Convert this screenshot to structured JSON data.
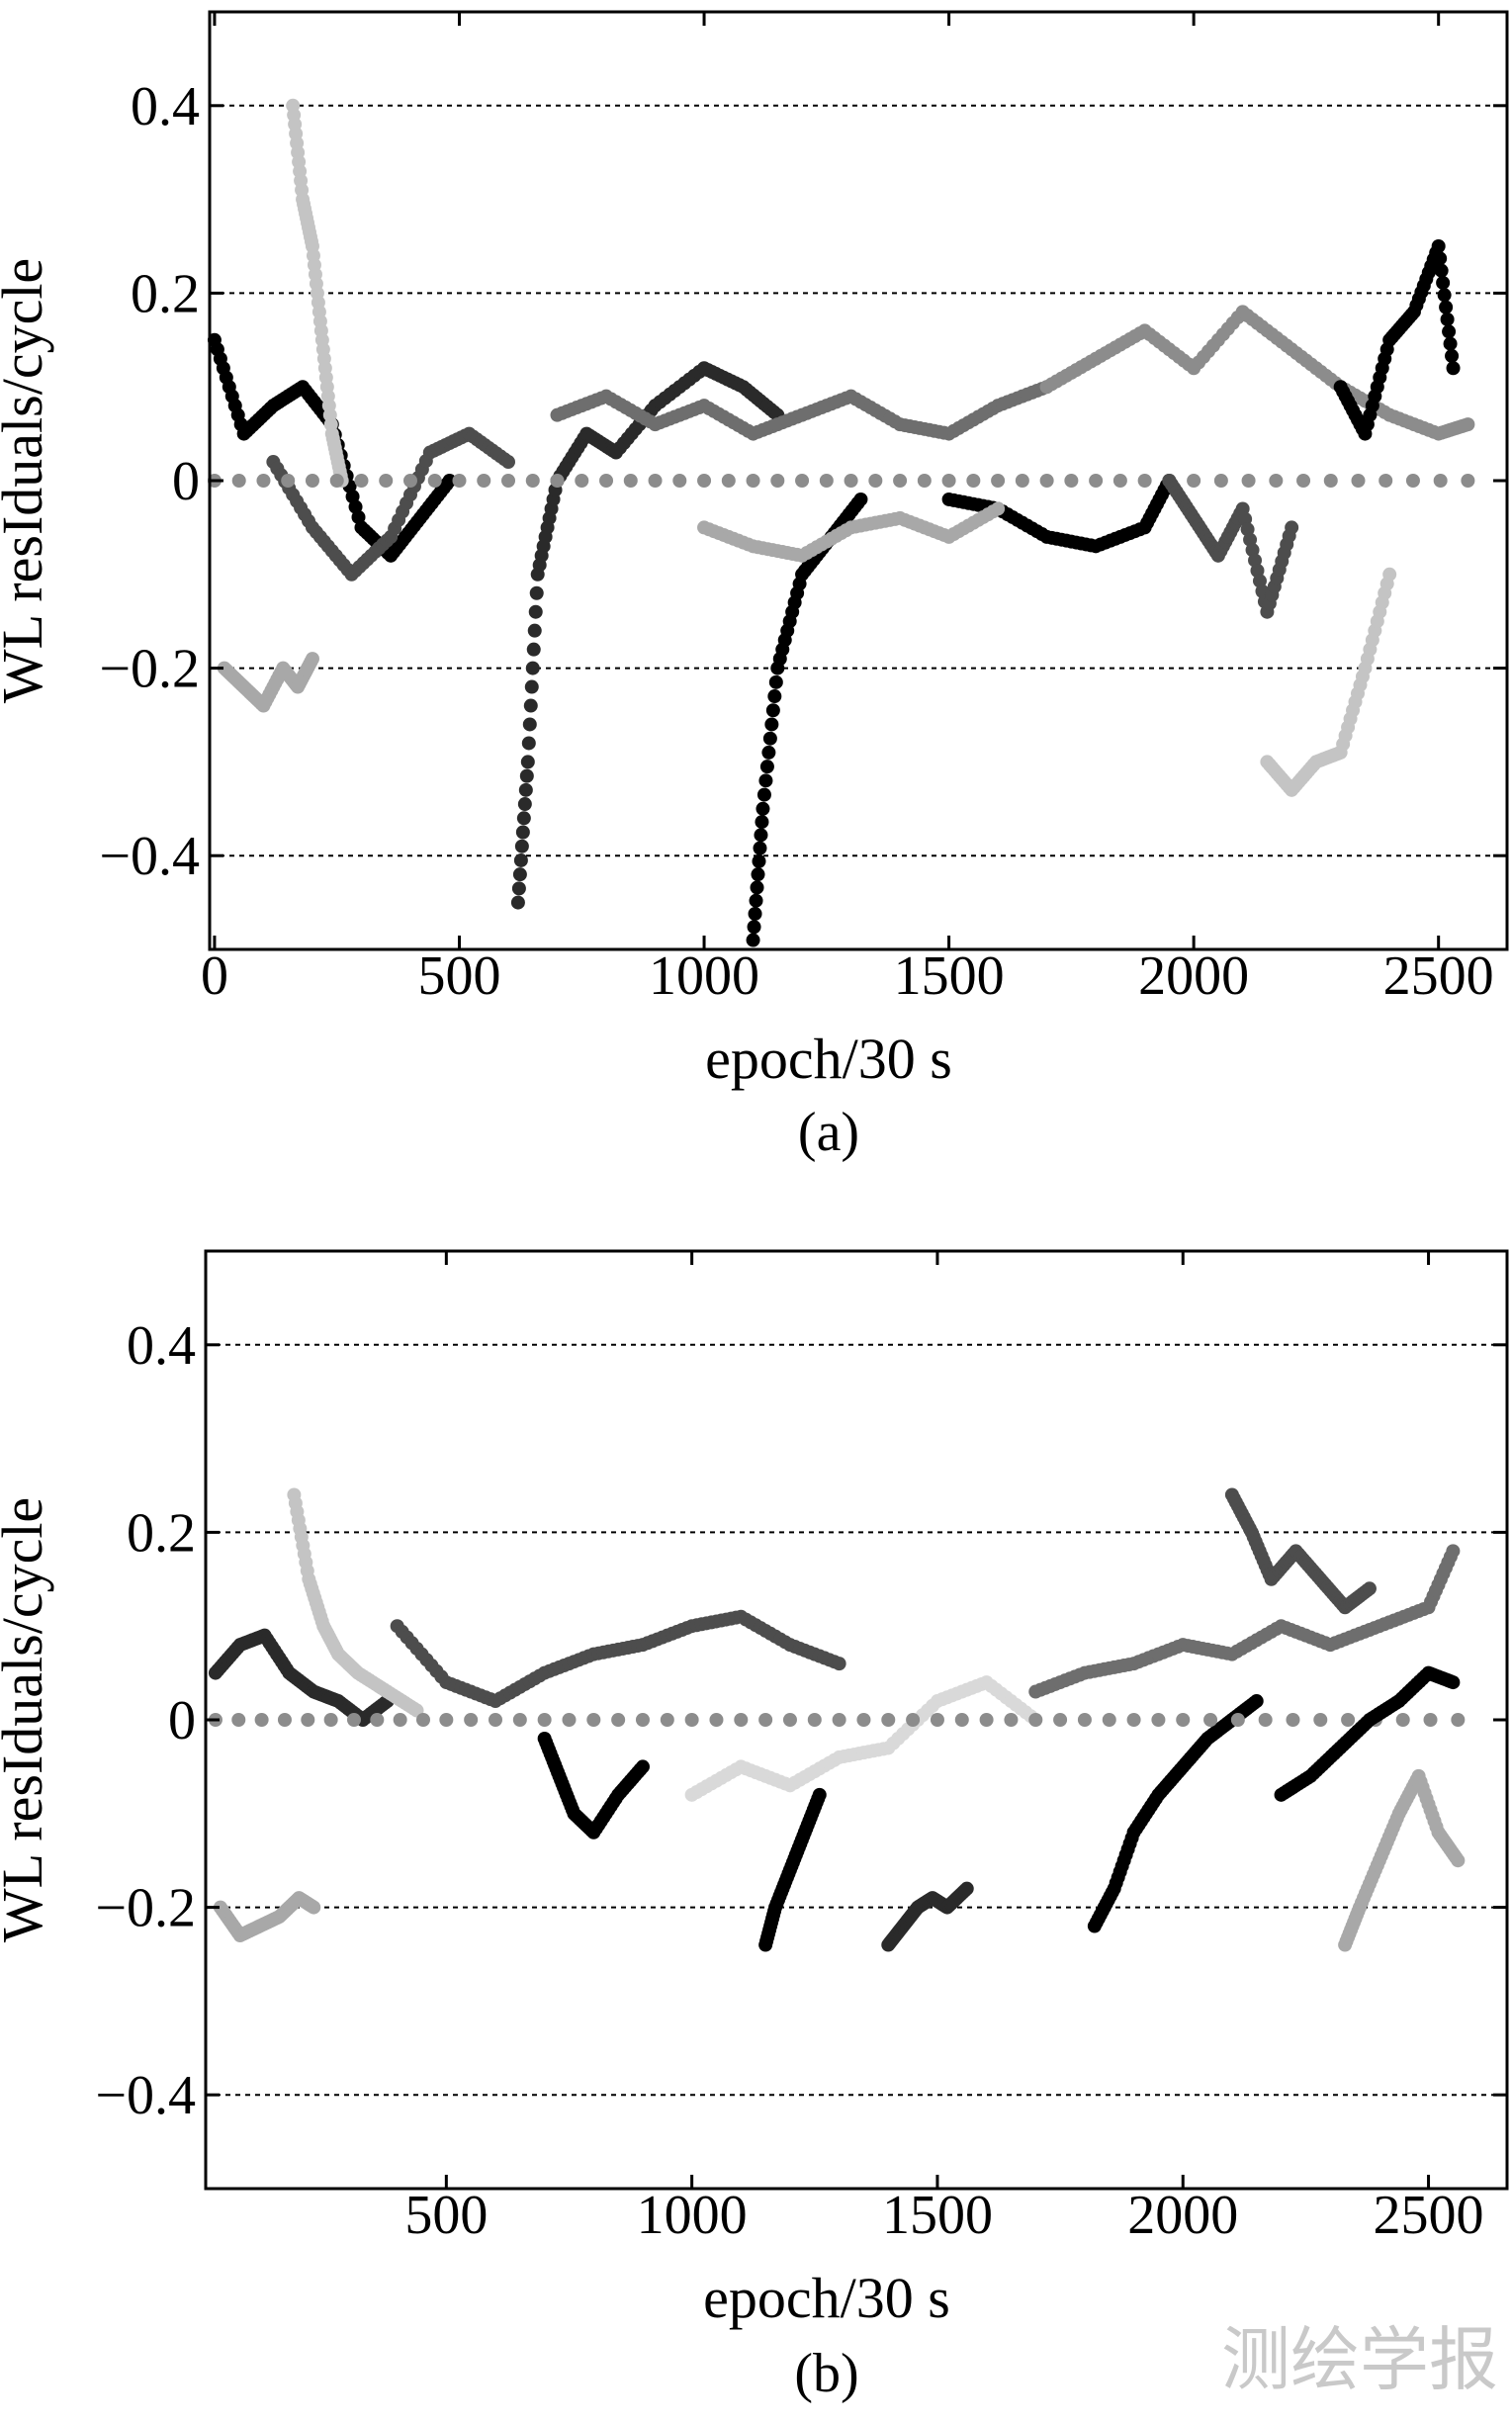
{
  "watermark": "测绘学报",
  "chart_data": [
    {
      "type": "scatter",
      "caption": "(a)",
      "xlabel": "epoch/30 s",
      "ylabel": "WL resIduals/cycle",
      "xlim": [
        -10,
        2640
      ],
      "ylim": [
        -0.5,
        0.5
      ],
      "xticks": [
        0,
        500,
        1000,
        1500,
        2000,
        2500
      ],
      "xtick_labels": [
        "0",
        "500",
        "1000",
        "1500",
        "2000",
        "2500"
      ],
      "yticks": [
        0.4,
        0.2,
        0,
        -0.2,
        -0.4
      ],
      "ytick_labels": [
        "0.4",
        "0.2",
        "0",
        "−0.2",
        "−0.4"
      ],
      "grid": "horizontal dotted",
      "colors": [
        "#000000",
        "#2a2a2a",
        "#4d4d4d",
        "#6e6e6e",
        "#8c8c8c",
        "#a8a8a8",
        "#c4c4c4",
        "#d9d9d9"
      ],
      "series": [
        {
          "color": "#000000",
          "x": [
            0,
            60,
            120,
            180,
            240,
            300,
            360,
            420,
            480
          ],
          "y": [
            0.15,
            0.05,
            0.08,
            0.1,
            0.06,
            -0.05,
            -0.08,
            -0.04,
            0.0
          ]
        },
        {
          "color": "#2a2a2a",
          "x": [
            620,
            640,
            660,
            700,
            760,
            820,
            900,
            1000,
            1080,
            1150
          ],
          "y": [
            -0.45,
            -0.3,
            -0.1,
            0.0,
            0.05,
            0.03,
            0.08,
            0.12,
            0.1,
            0.07
          ]
        },
        {
          "color": "#000000",
          "x": [
            1100,
            1120,
            1150,
            1200,
            1260,
            1320
          ],
          "y": [
            -0.49,
            -0.35,
            -0.2,
            -0.1,
            -0.06,
            -0.02
          ]
        },
        {
          "color": "#000000",
          "x": [
            1500,
            1600,
            1700,
            1800,
            1900,
            1950
          ],
          "y": [
            -0.02,
            -0.03,
            -0.06,
            -0.07,
            -0.05,
            0.0
          ]
        },
        {
          "color": "#4d4d4d",
          "x": [
            120,
            200,
            280,
            360,
            440,
            520,
            600
          ],
          "y": [
            0.02,
            -0.05,
            -0.1,
            -0.06,
            0.03,
            0.05,
            0.02
          ]
        },
        {
          "color": "#6e6e6e",
          "x": [
            700,
            800,
            900,
            1000,
            1100,
            1200,
            1300,
            1400,
            1500,
            1600,
            1700
          ],
          "y": [
            0.07,
            0.09,
            0.06,
            0.08,
            0.05,
            0.07,
            0.09,
            0.06,
            0.05,
            0.08,
            0.1
          ]
        },
        {
          "color": "#8c8c8c",
          "x": [
            1700,
            1800,
            1900,
            2000,
            2100,
            2200,
            2300,
            2400,
            2500,
            2560
          ],
          "y": [
            0.1,
            0.13,
            0.16,
            0.12,
            0.18,
            0.14,
            0.1,
            0.07,
            0.05,
            0.06
          ]
        },
        {
          "color": "#a8a8a8",
          "x": [
            20,
            60,
            100,
            140,
            170,
            200
          ],
          "y": [
            -0.2,
            -0.22,
            -0.24,
            -0.2,
            -0.22,
            -0.19
          ]
        },
        {
          "color": "#c4c4c4",
          "x": [
            160,
            180,
            200,
            220,
            240,
            260
          ],
          "y": [
            0.4,
            0.3,
            0.25,
            0.15,
            0.05,
            0.0
          ]
        },
        {
          "color": "#c4c4c4",
          "x": [
            2150,
            2200,
            2250,
            2300,
            2350,
            2400
          ],
          "y": [
            -0.3,
            -0.33,
            -0.3,
            -0.29,
            -0.2,
            -0.1
          ]
        },
        {
          "color": "#000000",
          "x": [
            2300,
            2350,
            2400,
            2450,
            2500,
            2530
          ],
          "y": [
            0.1,
            0.05,
            0.15,
            0.18,
            0.25,
            0.12
          ]
        },
        {
          "color": "#8c8c8c",
          "x": [
            0,
            500,
            1000,
            1500,
            2000,
            2560
          ],
          "y": [
            0.0,
            0.0,
            0.0,
            0.0,
            0.0,
            0.0
          ]
        },
        {
          "color": "#4d4d4d",
          "x": [
            1950,
            2000,
            2050,
            2100,
            2150,
            2200
          ],
          "y": [
            0.0,
            -0.04,
            -0.08,
            -0.03,
            -0.14,
            -0.05
          ]
        },
        {
          "color": "#a8a8a8",
          "x": [
            1000,
            1100,
            1200,
            1300,
            1400,
            1500,
            1600
          ],
          "y": [
            -0.05,
            -0.07,
            -0.08,
            -0.05,
            -0.04,
            -0.06,
            -0.03
          ]
        }
      ]
    },
    {
      "type": "scatter",
      "caption": "(b)",
      "xlabel": "epoch/30 s",
      "ylabel": "WL resIduals/cycle",
      "xlim": [
        10,
        2660
      ],
      "ylim": [
        -0.5,
        0.5
      ],
      "xticks": [
        500,
        1000,
        1500,
        2000,
        2500
      ],
      "xtick_labels": [
        "500",
        "1000",
        "1500",
        "2000",
        "2500"
      ],
      "yticks": [
        0.4,
        0.2,
        0,
        -0.2,
        -0.4
      ],
      "ytick_labels": [
        "0.4",
        "0.2",
        "0",
        "−0.2",
        "−0.4"
      ],
      "grid": "horizontal dotted",
      "colors": [
        "#000000",
        "#2a2a2a",
        "#4d4d4d",
        "#6e6e6e",
        "#8c8c8c",
        "#a8a8a8",
        "#c4c4c4",
        "#d9d9d9"
      ],
      "series": [
        {
          "color": "#2a2a2a",
          "x": [
            30,
            80,
            130,
            180,
            230,
            280,
            330,
            380
          ],
          "y": [
            0.05,
            0.08,
            0.09,
            0.05,
            0.03,
            0.02,
            0.0,
            0.02
          ]
        },
        {
          "color": "#c4c4c4",
          "x": [
            190,
            220,
            250,
            280,
            320,
            380,
            440
          ],
          "y": [
            0.24,
            0.15,
            0.1,
            0.07,
            0.05,
            0.03,
            0.01
          ]
        },
        {
          "color": "#a8a8a8",
          "x": [
            40,
            80,
            120,
            160,
            200,
            230
          ],
          "y": [
            -0.2,
            -0.23,
            -0.22,
            -0.21,
            -0.19,
            -0.2
          ]
        },
        {
          "color": "#4d4d4d",
          "x": [
            400,
            500,
            600,
            700,
            800,
            900,
            1000,
            1100,
            1200,
            1300
          ],
          "y": [
            0.1,
            0.04,
            0.02,
            0.05,
            0.07,
            0.08,
            0.1,
            0.11,
            0.08,
            0.06
          ]
        },
        {
          "color": "#000000",
          "x": [
            1150,
            1170,
            1200,
            1230,
            1260
          ],
          "y": [
            -0.24,
            -0.2,
            -0.16,
            -0.12,
            -0.08
          ]
        },
        {
          "color": "#000000",
          "x": [
            700,
            730,
            760,
            800,
            850,
            900
          ],
          "y": [
            -0.02,
            -0.06,
            -0.1,
            -0.12,
            -0.08,
            -0.05
          ]
        },
        {
          "color": "#2a2a2a",
          "x": [
            1400,
            1430,
            1460,
            1490,
            1520,
            1560
          ],
          "y": [
            -0.24,
            -0.22,
            -0.2,
            -0.19,
            -0.2,
            -0.18
          ]
        },
        {
          "color": "#000000",
          "x": [
            1820,
            1860,
            1900,
            1950,
            2000,
            2050,
            2100,
            2150
          ],
          "y": [
            -0.22,
            -0.18,
            -0.12,
            -0.08,
            -0.05,
            -0.02,
            0.0,
            0.02
          ]
        },
        {
          "color": "#4d4d4d",
          "x": [
            2100,
            2140,
            2180,
            2230,
            2280,
            2330,
            2380
          ],
          "y": [
            0.24,
            0.2,
            0.15,
            0.18,
            0.15,
            0.12,
            0.14
          ]
        },
        {
          "color": "#a8a8a8",
          "x": [
            2330,
            2360,
            2400,
            2440,
            2480,
            2520,
            2560
          ],
          "y": [
            -0.24,
            -0.2,
            -0.15,
            -0.1,
            -0.06,
            -0.12,
            -0.15
          ]
        },
        {
          "color": "#6e6e6e",
          "x": [
            1700,
            1800,
            1900,
            2000,
            2100,
            2200,
            2300,
            2400,
            2500,
            2550
          ],
          "y": [
            0.03,
            0.05,
            0.06,
            0.08,
            0.07,
            0.1,
            0.08,
            0.1,
            0.12,
            0.18
          ]
        },
        {
          "color": "#d9d9d9",
          "x": [
            1000,
            1100,
            1200,
            1300,
            1400,
            1500,
            1600,
            1700
          ],
          "y": [
            -0.08,
            -0.05,
            -0.07,
            -0.04,
            -0.03,
            0.02,
            0.04,
            0.0
          ]
        },
        {
          "color": "#8c8c8c",
          "x": [
            30,
            500,
            1000,
            1500,
            2000,
            2560
          ],
          "y": [
            0.0,
            0.0,
            0.0,
            0.0,
            0.0,
            0.0
          ]
        },
        {
          "color": "#000000",
          "x": [
            2200,
            2260,
            2320,
            2380,
            2440,
            2500,
            2550
          ],
          "y": [
            -0.08,
            -0.06,
            -0.03,
            0.0,
            0.02,
            0.05,
            0.04
          ]
        }
      ]
    }
  ]
}
